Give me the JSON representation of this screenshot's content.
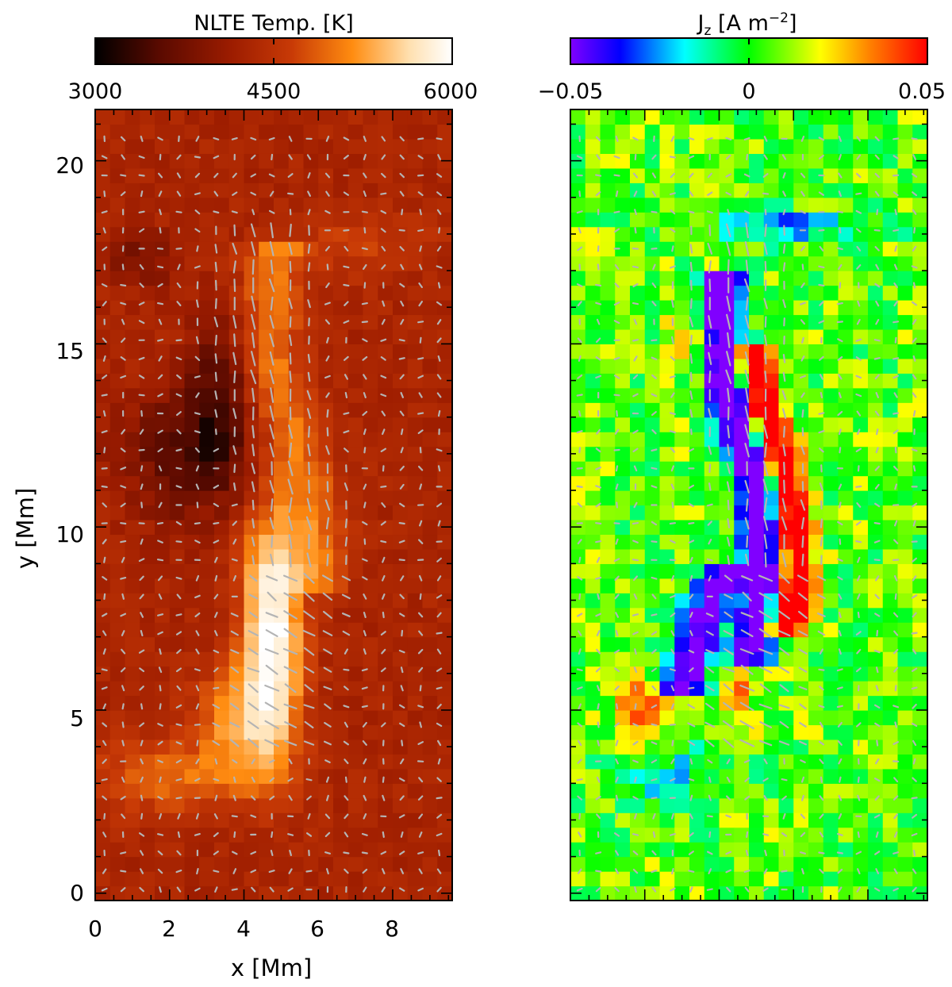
{
  "chart_data": [
    {
      "type": "heatmap",
      "title": "NLTE Temp. [K]",
      "colorbar": {
        "label": "NLTE Temp. [K]",
        "range": [
          3000,
          6000
        ],
        "ticks": [
          "3000",
          "4500",
          "6000"
        ],
        "colormap": "red-temperature",
        "colors": [
          "#000000",
          "#5a0a00",
          "#9c1c00",
          "#c83a06",
          "#ff8c10",
          "#ffe0b0",
          "#ffffff"
        ]
      },
      "xlabel": "x [Mm]",
      "ylabel": "y [Mm]",
      "xlim": [
        0,
        9.6
      ],
      "ylim": [
        -0.2,
        21.4
      ],
      "xticks": [
        "0",
        "2",
        "4",
        "6",
        "8"
      ],
      "yticks": [
        "0",
        "5",
        "10",
        "15",
        "20"
      ],
      "background_value": 4150,
      "features": [
        {
          "name": "bright ribbon",
          "x": 4.8,
          "y": 7.0,
          "value": 6000
        },
        {
          "name": "heated arc",
          "x": 5.6,
          "y": 13.0,
          "value": 4900
        },
        {
          "name": "cool region",
          "x": 2.8,
          "y": 12.2,
          "value": 3400
        },
        {
          "name": "warm lower band",
          "x": 2.5,
          "y": 3.0,
          "value": 4900
        }
      ],
      "overlay": "gray horizontal magnetic field vectors"
    },
    {
      "type": "heatmap",
      "title": "J_z [A m^-2]",
      "colorbar": {
        "label_main": "J",
        "label_sub": "z",
        "label_unit_open": " [A m",
        "label_unit_exp": "−2",
        "label_unit_close": "]",
        "range": [
          -0.05,
          0.05
        ],
        "ticks": [
          "−0.05",
          "0",
          "0.05"
        ],
        "colormap": "rainbow",
        "colors": [
          "#8000ff",
          "#0000ff",
          "#00ffff",
          "#00ff00",
          "#ffff00",
          "#ff8000",
          "#ff0000"
        ]
      },
      "xlim": [
        0,
        9.6
      ],
      "ylim": [
        -0.2,
        21.4
      ],
      "background_value": 0.005,
      "features": [
        {
          "name": "negative current sheet",
          "x": 4.6,
          "y": 10.0,
          "value": -0.05
        },
        {
          "name": "positive current sheet",
          "x": 5.8,
          "y": 11.0,
          "value": 0.05
        },
        {
          "name": "positive patch",
          "x": 2.0,
          "y": 5.0,
          "value": 0.03
        },
        {
          "name": "negative band",
          "x": 6.0,
          "y": 18.0,
          "value": -0.02
        }
      ],
      "overlay": "gray horizontal magnetic field vectors"
    }
  ]
}
